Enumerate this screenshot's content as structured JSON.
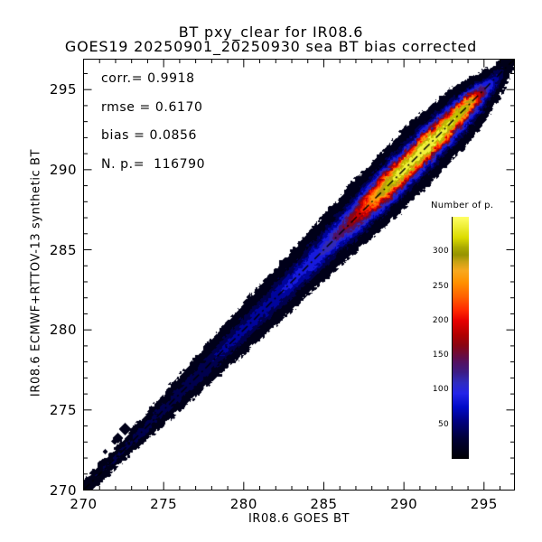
{
  "chart_data": {
    "type": "heatmap",
    "title": "BT pxy_clear for IR08.6",
    "subtitle": "GOES19 20250901_20250930 sea BT bias corrected",
    "xlabel": "IR08.6 GOES BT",
    "ylabel": "IR08.6 ECMWF+RTTOV-13 synthetic BT",
    "xlim": [
      270,
      296.9
    ],
    "ylim": [
      270,
      296.9
    ],
    "x_major_ticks": [
      270,
      275,
      280,
      285,
      290,
      295
    ],
    "y_major_ticks": [
      270,
      275,
      280,
      285,
      290,
      295
    ],
    "minor_tick_step": 1,
    "grid": false,
    "stats": {
      "corr": 0.9918,
      "rmse": 0.617,
      "bias": 0.0856,
      "n_points": 116790
    },
    "stats_text": [
      "corr.= 0.9918",
      "rmse = 0.6170",
      "bias = 0.0856",
      "N. p.=  116790"
    ],
    "identity_line": {
      "style": "dash-dot",
      "dash": [
        9,
        4,
        2,
        4
      ],
      "from": [
        270,
        270
      ],
      "to": [
        296.9,
        296.9
      ],
      "color": "#000000"
    },
    "density_band": {
      "description": "2D histogram of 116790 clear-sky sea points concentrated along the 1:1 line; peak density ~350 near BT 291 K",
      "along_profile": [
        [
          0,
          22
        ],
        [
          2,
          30
        ],
        [
          5,
          38
        ],
        [
          8,
          50
        ],
        [
          11,
          65
        ],
        [
          13,
          80
        ],
        [
          15,
          105
        ],
        [
          16,
          140
        ],
        [
          17,
          185
        ],
        [
          18,
          255
        ],
        [
          19,
          320
        ],
        [
          20,
          345
        ],
        [
          21,
          352
        ],
        [
          22,
          350
        ],
        [
          23,
          330
        ],
        [
          24,
          305
        ],
        [
          24.3,
          280
        ],
        [
          24.6,
          200
        ],
        [
          25.2,
          110
        ],
        [
          25.8,
          55
        ],
        [
          26.3,
          25
        ],
        [
          26.8,
          8
        ],
        [
          27,
          0
        ]
      ],
      "sigma_profile": [
        [
          0,
          0.18
        ],
        [
          3,
          0.24
        ],
        [
          6,
          0.35
        ],
        [
          9,
          0.45
        ],
        [
          12,
          0.52
        ],
        [
          15,
          0.58
        ],
        [
          18,
          0.62
        ],
        [
          21,
          0.63
        ],
        [
          23,
          0.58
        ],
        [
          25,
          0.45
        ],
        [
          26.5,
          0.22
        ],
        [
          27,
          0.18
        ]
      ],
      "level_step": 25,
      "min_value": 1.2,
      "edge_noise": 0.11,
      "edge_noise2": 0.06,
      "outlier_blobs": [
        {
          "x": 271.3,
          "y": 272.35,
          "r": 0.16
        },
        {
          "x": 272.1,
          "y": 273.2,
          "r": 0.35
        },
        {
          "x": 272.55,
          "y": 273.75,
          "r": 0.4
        },
        {
          "x": 271.9,
          "y": 273.0,
          "r": 0.25
        }
      ]
    },
    "value_range": [
      0,
      350
    ],
    "colormap_stops": [
      [
        0,
        "#000003"
      ],
      [
        30,
        "#000038"
      ],
      [
        55,
        "#000082"
      ],
      [
        75,
        "#000ac8"
      ],
      [
        95,
        "#2424e8"
      ],
      [
        110,
        "#2f2cc0"
      ],
      [
        125,
        "#3c1c86"
      ],
      [
        140,
        "#541060"
      ],
      [
        152,
        "#6e0a38"
      ],
      [
        165,
        "#8c0410"
      ],
      [
        180,
        "#b20000"
      ],
      [
        200,
        "#e60000"
      ],
      [
        215,
        "#ff2800"
      ],
      [
        235,
        "#ff6200"
      ],
      [
        255,
        "#ff9100"
      ],
      [
        272,
        "#f8a81e"
      ],
      [
        285,
        "#c8a214"
      ],
      [
        295,
        "#969300"
      ],
      [
        305,
        "#a8a800"
      ],
      [
        320,
        "#dcdc00"
      ],
      [
        350,
        "#ffff66"
      ]
    ],
    "colorbar": {
      "title": "Number of p.",
      "ticks": [
        50,
        100,
        150,
        200,
        250,
        300
      ],
      "range": [
        0,
        350
      ],
      "legend_position": "right-inside"
    }
  },
  "frame_color": "#000000",
  "background_color": "#ffffff"
}
